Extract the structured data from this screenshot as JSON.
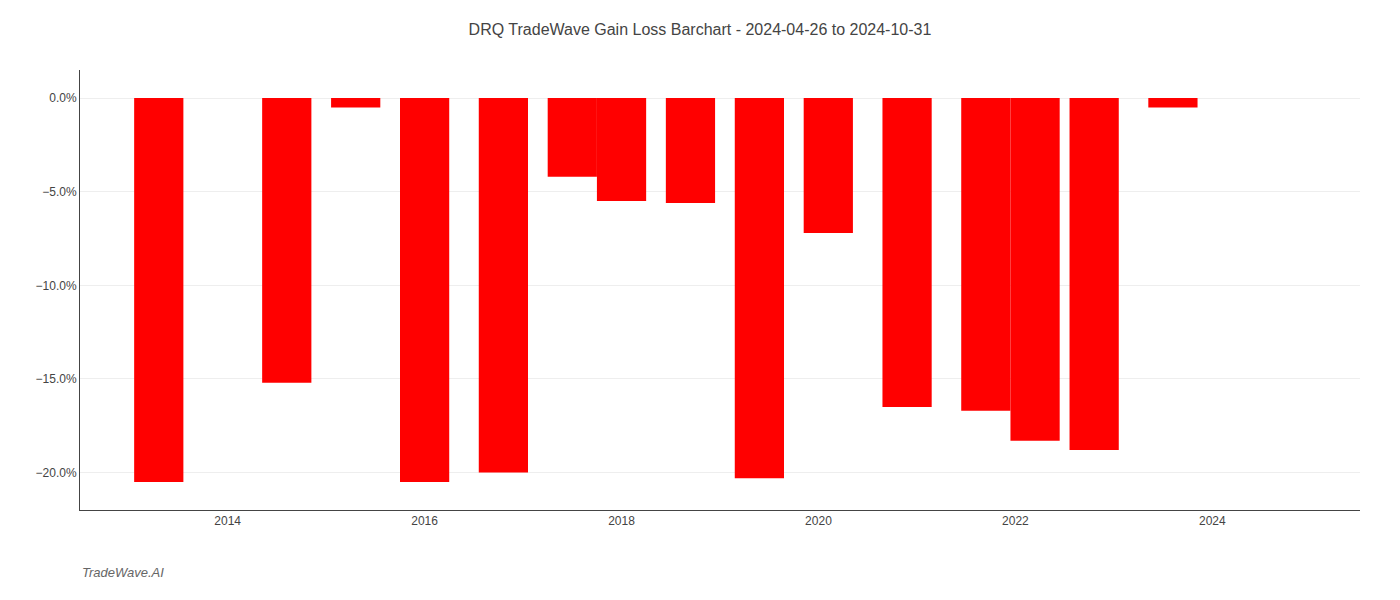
{
  "chart_data": {
    "type": "bar",
    "title": "DRQ TradeWave Gain Loss Barchart - 2024-04-26 to 2024-10-31",
    "annotations": [
      "TradeWave.AI"
    ],
    "x": [
      2013.3,
      2014.6,
      2015.3,
      2016.0,
      2016.8,
      2017.5,
      2018.0,
      2018.7,
      2019.4,
      2020.1,
      2020.9,
      2021.7,
      2022.2,
      2022.8,
      2023.6
    ],
    "values": [
      -20.5,
      -15.2,
      -0.5,
      -20.5,
      -20.0,
      -4.2,
      -5.5,
      -5.6,
      -20.3,
      -7.2,
      -16.5,
      -16.7,
      -18.3,
      -18.8,
      -0.5
    ],
    "color": "#ff0000",
    "xlim": [
      2012.5,
      2025.5
    ],
    "xticks": [
      2014,
      2016,
      2018,
      2020,
      2022,
      2024
    ],
    "ylim": [
      -22.0,
      1.5
    ],
    "yticks": [
      {
        "value": 0.0,
        "label": "0.0%"
      },
      {
        "value": -5.0,
        "label": "−5.0%"
      },
      {
        "value": -10.0,
        "label": "−10.0%"
      },
      {
        "value": -15.0,
        "label": "−15.0%"
      },
      {
        "value": -20.0,
        "label": "−20.0%"
      }
    ],
    "grid": true
  }
}
